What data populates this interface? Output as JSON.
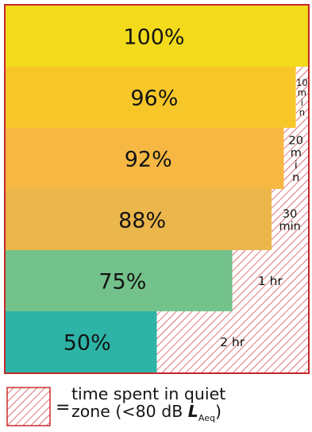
{
  "chart_data": {
    "type": "bar",
    "orientation": "horizontal",
    "stacked": true,
    "xlim": [
      0,
      100
    ],
    "categories": [
      "100%",
      "96%",
      "92%",
      "88%",
      "75%",
      "50%"
    ],
    "series": [
      {
        "values": [
          100,
          96,
          92,
          88,
          75,
          50
        ]
      },
      {
        "values": [
          0,
          4,
          8,
          12,
          25,
          50
        ]
      }
    ],
    "bar_colors": [
      "#f3db1c",
      "#f7c72a",
      "#f7b843",
      "#ebb64c",
      "#74c28b",
      "#2db4a7"
    ],
    "hatch_color": "#cc2b2b",
    "border_color": "#c3282a",
    "quiet_labels": [
      {
        "lines": []
      },
      {
        "lines": [
          "10",
          "m",
          "i",
          "n"
        ]
      },
      {
        "lines": [
          "20",
          "m",
          "i",
          "n"
        ]
      },
      {
        "lines": [
          "30",
          "min"
        ]
      },
      {
        "lines": [
          "1 hr"
        ]
      },
      {
        "lines": [
          "2 hr"
        ]
      }
    ]
  },
  "legend": {
    "equals": "=",
    "line1": "time spent in quiet",
    "line2_prefix": "zone (<80 dB ",
    "line2_symbol": "L",
    "line2_subscript": "Aeq",
    "line2_suffix": ")"
  }
}
